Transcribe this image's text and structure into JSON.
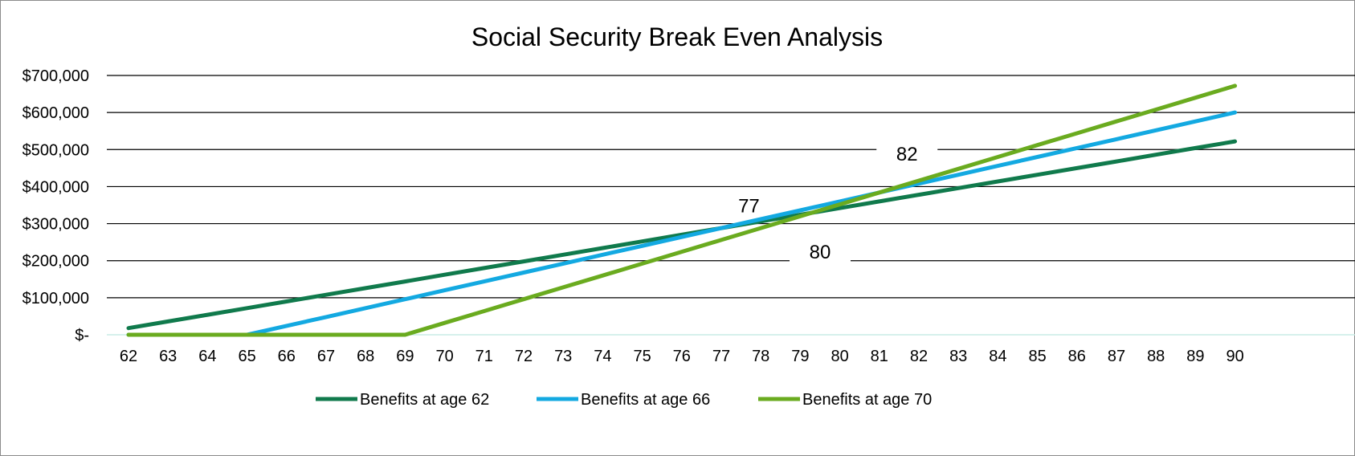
{
  "chart_data": {
    "type": "line",
    "title": "Social Security Break Even Analysis",
    "xlabel": "",
    "ylabel": "",
    "x": [
      62,
      63,
      64,
      65,
      66,
      67,
      68,
      69,
      70,
      71,
      72,
      73,
      74,
      75,
      76,
      77,
      78,
      79,
      80,
      81,
      82,
      83,
      84,
      85,
      86,
      87,
      88,
      89,
      90
    ],
    "xticks": [
      "62",
      "63",
      "64",
      "65",
      "66",
      "67",
      "68",
      "69",
      "70",
      "71",
      "72",
      "73",
      "74",
      "75",
      "76",
      "77",
      "78",
      "79",
      "80",
      "81",
      "82",
      "83",
      "84",
      "85",
      "86",
      "87",
      "88",
      "89",
      "90"
    ],
    "ylim": [
      0,
      700000
    ],
    "yticks": [
      {
        "value": 0,
        "label": "$-"
      },
      {
        "value": 100000,
        "label": "$100,000"
      },
      {
        "value": 200000,
        "label": "$200,000"
      },
      {
        "value": 300000,
        "label": "$300,000"
      },
      {
        "value": 400000,
        "label": "$400,000"
      },
      {
        "value": 500000,
        "label": "$500,000"
      },
      {
        "value": 600000,
        "label": "$600,000"
      },
      {
        "value": 700000,
        "label": "$700,000"
      }
    ],
    "grid": true,
    "legend_position": "bottom",
    "series": [
      {
        "name": "Benefits at age 62",
        "color": "#107a4c",
        "values": [
          18000,
          36000,
          54000,
          72000,
          90000,
          108000,
          126000,
          144000,
          162000,
          180000,
          198000,
          216000,
          234000,
          252000,
          270000,
          288000,
          306000,
          324000,
          342000,
          360000,
          378000,
          396000,
          414000,
          432000,
          450000,
          468000,
          486000,
          504000,
          522000
        ]
      },
      {
        "name": "Benefits at age 66",
        "color": "#13a9e1",
        "values": [
          0,
          0,
          0,
          0,
          24000,
          48000,
          72000,
          96000,
          120000,
          144000,
          168000,
          192000,
          216000,
          240000,
          264000,
          288000,
          312000,
          336000,
          360000,
          384000,
          408000,
          432000,
          456000,
          480000,
          504000,
          528000,
          552000,
          576000,
          600000
        ]
      },
      {
        "name": "Benefits at  age 70",
        "color": "#6aab1f",
        "values": [
          0,
          0,
          0,
          0,
          0,
          0,
          0,
          0,
          32000,
          64000,
          96000,
          128000,
          160000,
          192000,
          224000,
          256000,
          288000,
          320000,
          352000,
          384000,
          416000,
          448000,
          480000,
          512000,
          544000,
          576000,
          608000,
          640000,
          672000
        ]
      }
    ],
    "annotations": [
      {
        "text": "77",
        "x": 77.7,
        "y": 350000
      },
      {
        "text": "82",
        "x": 81.7,
        "y": 490000
      },
      {
        "text": "80",
        "x": 79.5,
        "y": 225000
      }
    ]
  }
}
